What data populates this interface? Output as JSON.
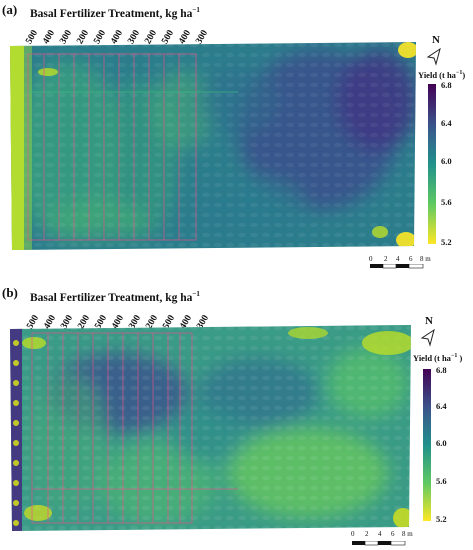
{
  "panels": [
    {
      "label": "(a)",
      "title": "Basal Fertilizer Treatment, kg ha",
      "title_sup": "−1",
      "treatments": [
        "500",
        "400",
        "300",
        "200",
        "500",
        "400",
        "300",
        "200",
        "500",
        "400",
        "300"
      ],
      "north": "N",
      "legend_title": "Yield (t ha",
      "legend_sup": "−1",
      "legend_close": ")",
      "legend_ticks": [
        "6.8",
        "6.4",
        "6.0",
        "5.6",
        "5.2"
      ],
      "scale_labels": [
        "0",
        "2",
        "4",
        "6",
        "8 m"
      ]
    },
    {
      "label": "(b)",
      "title": "Basal Fertilizer Treatment, kg ha",
      "title_sup": "−1",
      "treatments": [
        "500",
        "400",
        "300",
        "200",
        "500",
        "400",
        "300",
        "200",
        "500",
        "400",
        "300"
      ],
      "north": "N",
      "legend_title": "Yield (t ha",
      "legend_sup": "−1",
      "legend_close": " )",
      "legend_ticks": [
        "6.8",
        "6.4",
        "6.0",
        "5.6",
        "5.2"
      ],
      "scale_labels": [
        "0",
        "2",
        "4",
        "6",
        "8 m"
      ]
    }
  ],
  "colors": {
    "low": "#fde725",
    "mid": "#21918c",
    "high": "#440154",
    "plot_lines": "#e0558a"
  }
}
